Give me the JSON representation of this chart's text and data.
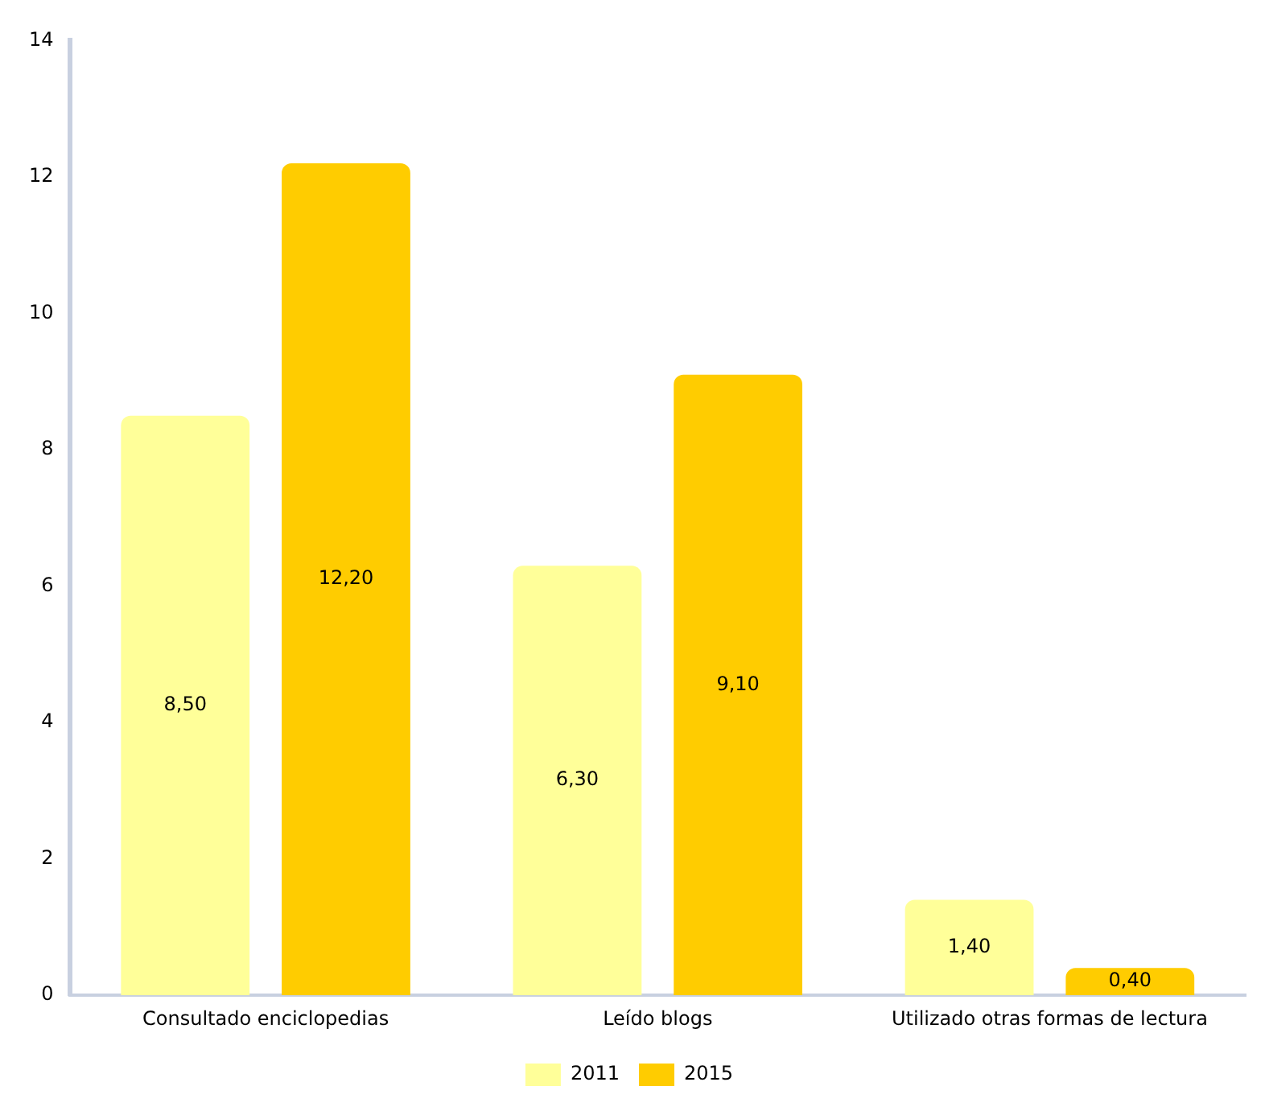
{
  "chart_data": {
    "type": "bar",
    "categories": [
      "Consultado enciclopedias",
      "Leído blogs",
      "Utilizado otras formas de lectura"
    ],
    "series": [
      {
        "name": "2011",
        "color": "#ffff99",
        "values": [
          8.5,
          6.3,
          1.4
        ],
        "value_labels": [
          "8,50",
          "6,30",
          "1,40"
        ]
      },
      {
        "name": "2015",
        "color": "#ffcc00",
        "values": [
          12.2,
          9.1,
          0.4
        ],
        "value_labels": [
          "12,20",
          "9,10",
          "0,40"
        ]
      }
    ],
    "ylim": [
      0,
      14
    ],
    "yticks": [
      0,
      2,
      4,
      6,
      8,
      10,
      12,
      14
    ],
    "grid": false,
    "legend": "bottom"
  }
}
